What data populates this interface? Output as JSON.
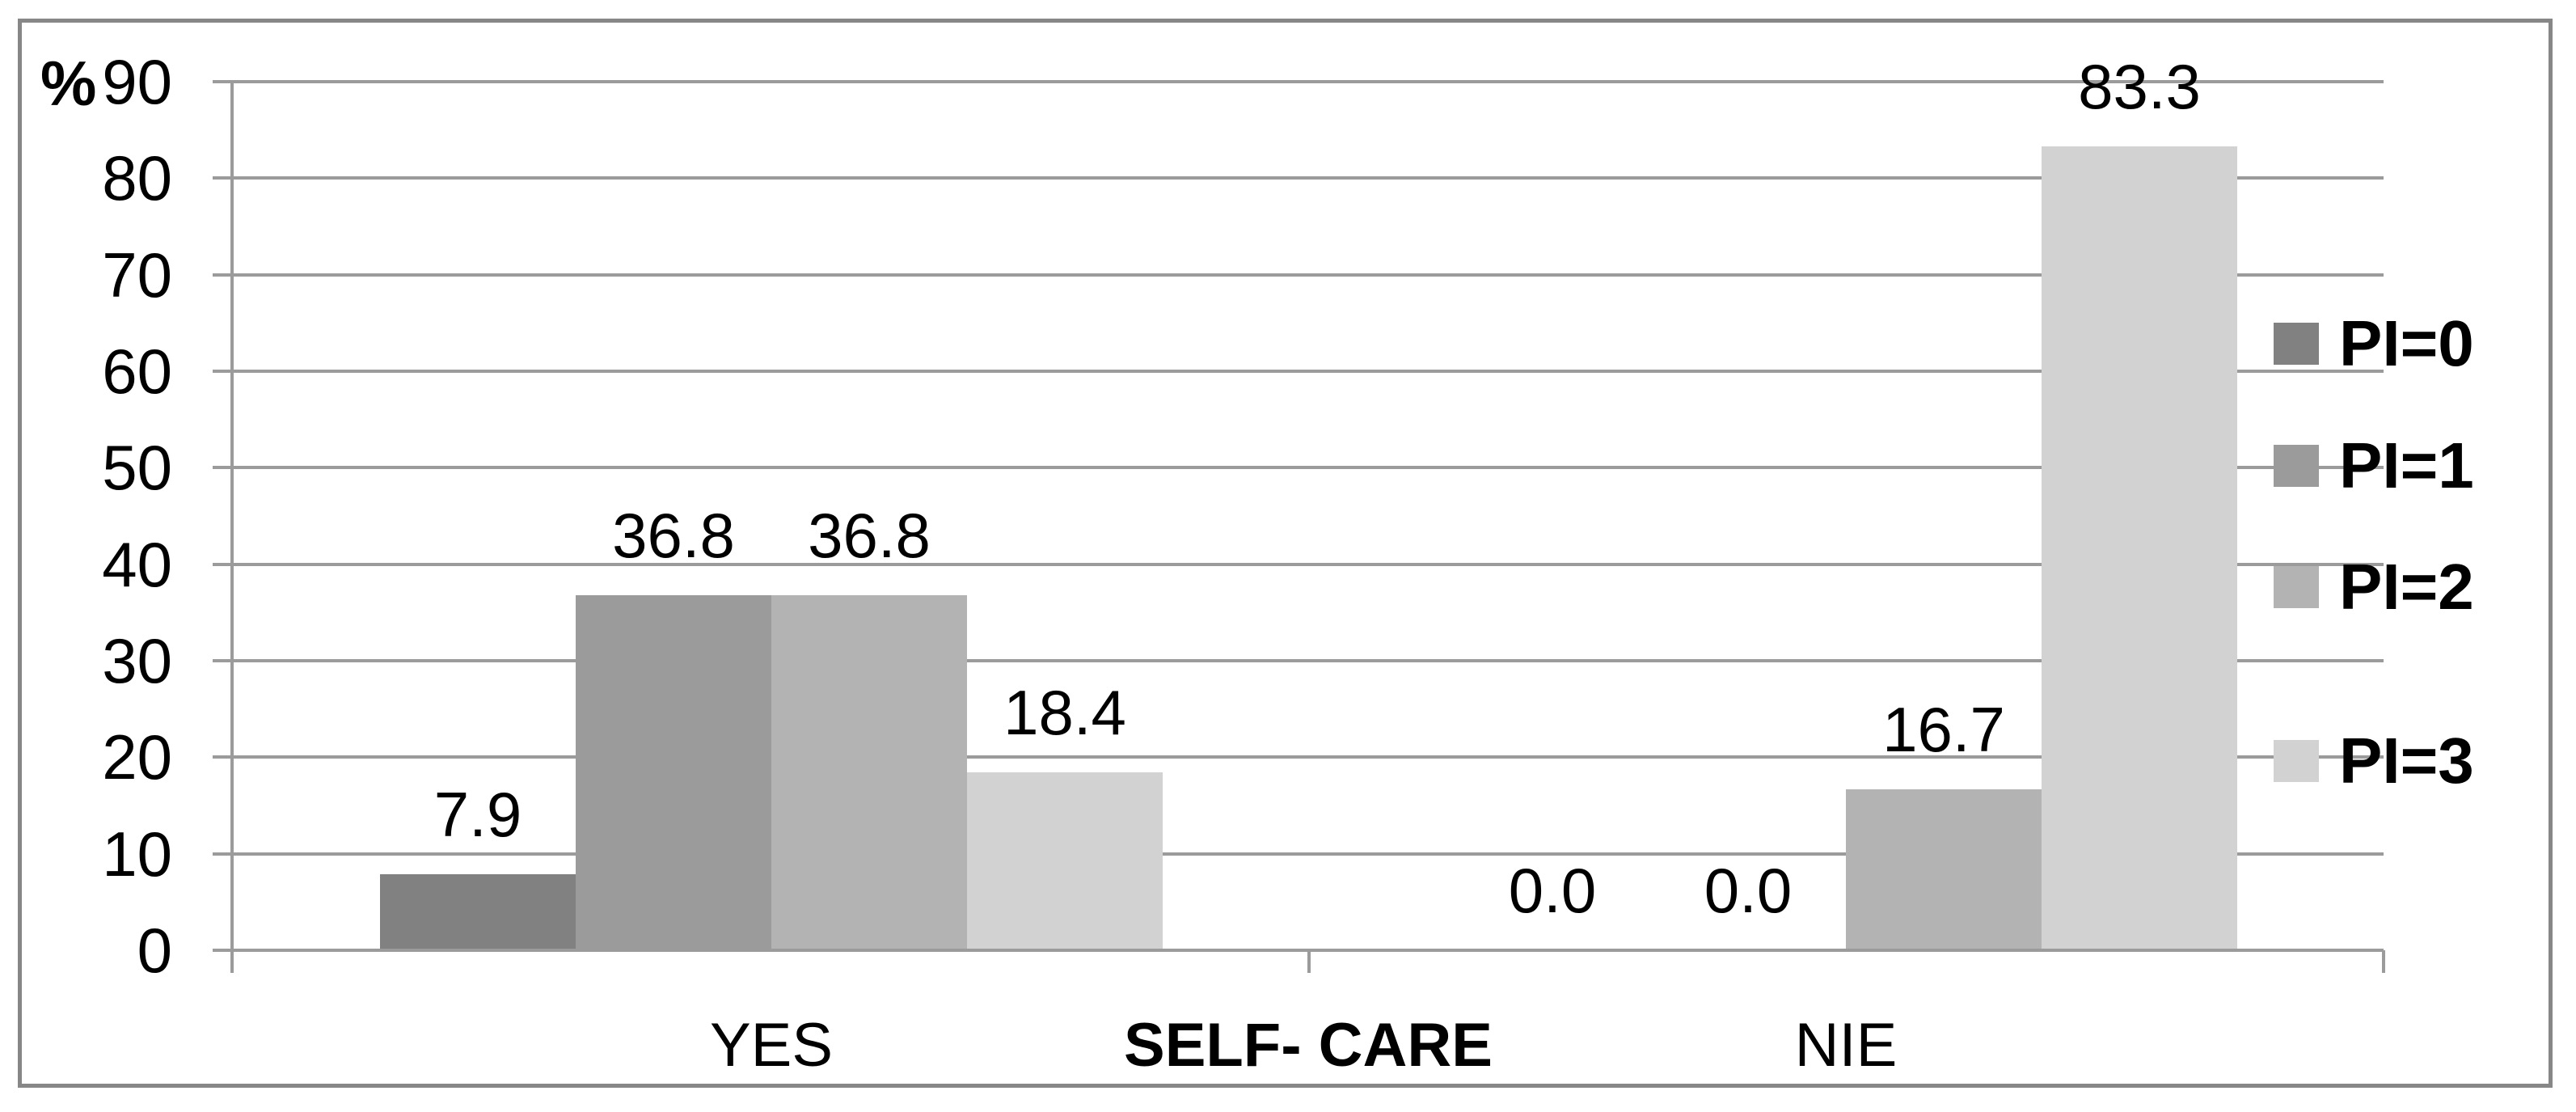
{
  "chart_data": {
    "type": "bar",
    "title": "",
    "y_unit_label": "%",
    "categories": [
      "YES",
      "NIE"
    ],
    "x_axis_title": "SELF- CARE",
    "series": [
      {
        "name": "PI=0",
        "color": "#818181",
        "values": [
          7.9,
          0.0
        ],
        "labels": [
          "7.9",
          "0.0"
        ]
      },
      {
        "name": "PI=1",
        "color": "#9b9b9b",
        "values": [
          36.8,
          0.0
        ],
        "labels": [
          "36.8",
          "0.0"
        ]
      },
      {
        "name": "PI=2",
        "color": "#b3b3b3",
        "values": [
          36.8,
          16.7
        ],
        "labels": [
          "36.8",
          "16.7"
        ]
      },
      {
        "name": "PI=3",
        "color": "#d2d2d2",
        "values": [
          18.4,
          83.3
        ],
        "labels": [
          "18.4",
          "83.3"
        ]
      }
    ],
    "ylim": [
      0,
      90
    ],
    "ytick_step": 10,
    "yticks": [
      "0",
      "10",
      "20",
      "30",
      "40",
      "50",
      "60",
      "70",
      "80",
      "90"
    ],
    "grid": true,
    "legend_position": "right",
    "legend_items": [
      "PI=0",
      "PI=1",
      "PI=2",
      "PI=3"
    ]
  },
  "colors": {
    "gridline": "#9b9b9b",
    "figure_border": "#878787",
    "text": "#000000",
    "background": "#ffffff"
  }
}
